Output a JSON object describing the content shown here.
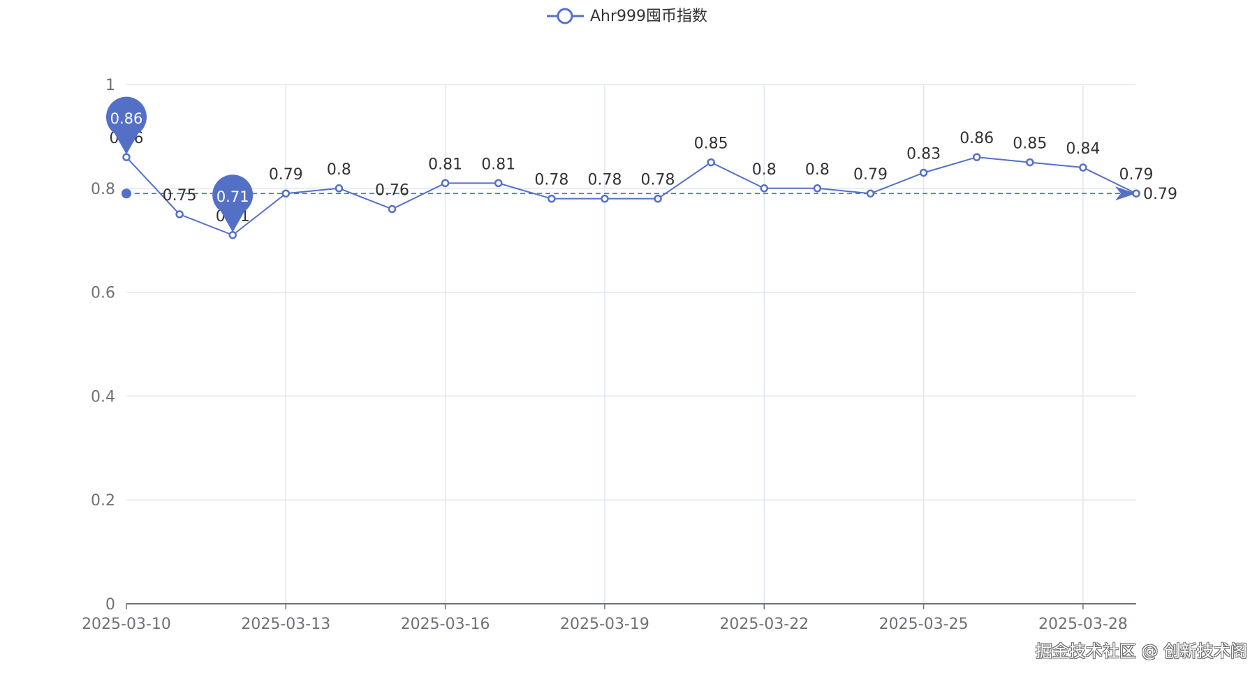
{
  "chart_data": {
    "type": "line",
    "x": [
      "2025-03-10",
      "2025-03-11",
      "2025-03-12",
      "2025-03-13",
      "2025-03-14",
      "2025-03-15",
      "2025-03-16",
      "2025-03-17",
      "2025-03-18",
      "2025-03-19",
      "2025-03-20",
      "2025-03-21",
      "2025-03-22",
      "2025-03-23",
      "2025-03-24",
      "2025-03-25",
      "2025-03-26",
      "2025-03-27",
      "2025-03-28",
      "2025-03-29"
    ],
    "x_tick_labels": [
      "2025-03-10",
      "2025-03-13",
      "2025-03-16",
      "2025-03-19",
      "2025-03-22",
      "2025-03-25",
      "2025-03-28"
    ],
    "series": [
      {
        "name": "Ahr999囤币指数",
        "values": [
          0.86,
          0.75,
          0.71,
          0.79,
          0.8,
          0.76,
          0.81,
          0.81,
          0.78,
          0.78,
          0.78,
          0.85,
          0.8,
          0.8,
          0.79,
          0.83,
          0.86,
          0.85,
          0.84,
          0.79
        ]
      }
    ],
    "value_labels": [
      "0.86",
      "0.75",
      "0.71",
      "0.79",
      "0.8",
      "0.76",
      "0.81",
      "0.81",
      "0.78",
      "0.78",
      "0.78",
      "0.85",
      "0.8",
      "0.8",
      "0.79",
      "0.83",
      "0.86",
      "0.85",
      "0.84",
      "0.79"
    ],
    "y_ticks": [
      0,
      0.2,
      0.4,
      0.6,
      0.8,
      1
    ],
    "y_tick_labels": [
      "0",
      "0.2",
      "0.4",
      "0.6",
      "0.8",
      "1"
    ],
    "ylim": [
      0,
      1
    ],
    "mark_points": [
      {
        "type": "max",
        "index": 0,
        "value": 0.86,
        "label": "0.86"
      },
      {
        "type": "min",
        "index": 2,
        "value": 0.71,
        "label": "0.71"
      }
    ],
    "mark_line": {
      "type": "average",
      "value": 0.79,
      "label": "0.79"
    },
    "grid": true,
    "legend_position": "top-center",
    "color": "#5470c6"
  },
  "watermark": "掘金技术社区 @ 创新技术阁"
}
